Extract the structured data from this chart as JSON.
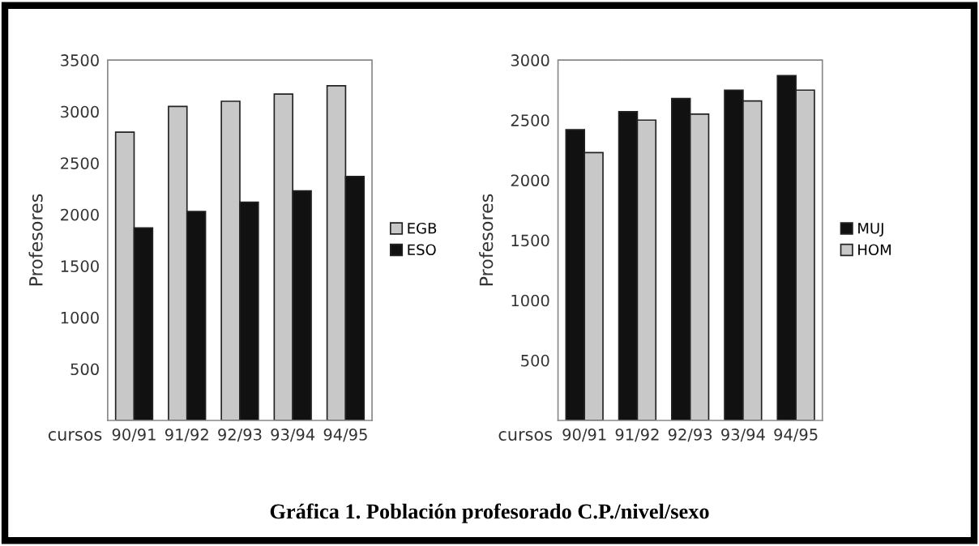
{
  "chart_data": [
    {
      "type": "bar",
      "categories": [
        "90/91",
        "91/92",
        "92/93",
        "93/94",
        "94/95"
      ],
      "xlabel": "cursos",
      "ylabel": "Profesores",
      "series": [
        {
          "name": "EGB",
          "color": "#c8c8c8",
          "values": [
            2800,
            3050,
            3100,
            3170,
            3250
          ]
        },
        {
          "name": "ESO",
          "color": "#111111",
          "values": [
            1870,
            2030,
            2120,
            2230,
            2370
          ]
        }
      ],
      "ylim": [
        0,
        3500
      ],
      "yticks": [
        500,
        1000,
        1500,
        2000,
        2500,
        3000,
        3500
      ],
      "grid": false,
      "legend": "right",
      "annotations": [
        "Gráfica 1. Población profesorado C.P./nivel/sexo"
      ]
    },
    {
      "type": "bar",
      "categories": [
        "90/91",
        "91/92",
        "92/93",
        "93/94",
        "94/95"
      ],
      "xlabel": "cursos",
      "ylabel": "Profesores",
      "series": [
        {
          "name": "MUJ",
          "color": "#111111",
          "values": [
            2420,
            2570,
            2680,
            2750,
            2870
          ]
        },
        {
          "name": "HOM",
          "color": "#c8c8c8",
          "values": [
            2230,
            2500,
            2550,
            2660,
            2750
          ]
        }
      ],
      "ylim": [
        0,
        3000
      ],
      "yticks": [
        500,
        1000,
        1500,
        2000,
        2500,
        3000
      ],
      "grid": false,
      "legend": "right"
    }
  ]
}
